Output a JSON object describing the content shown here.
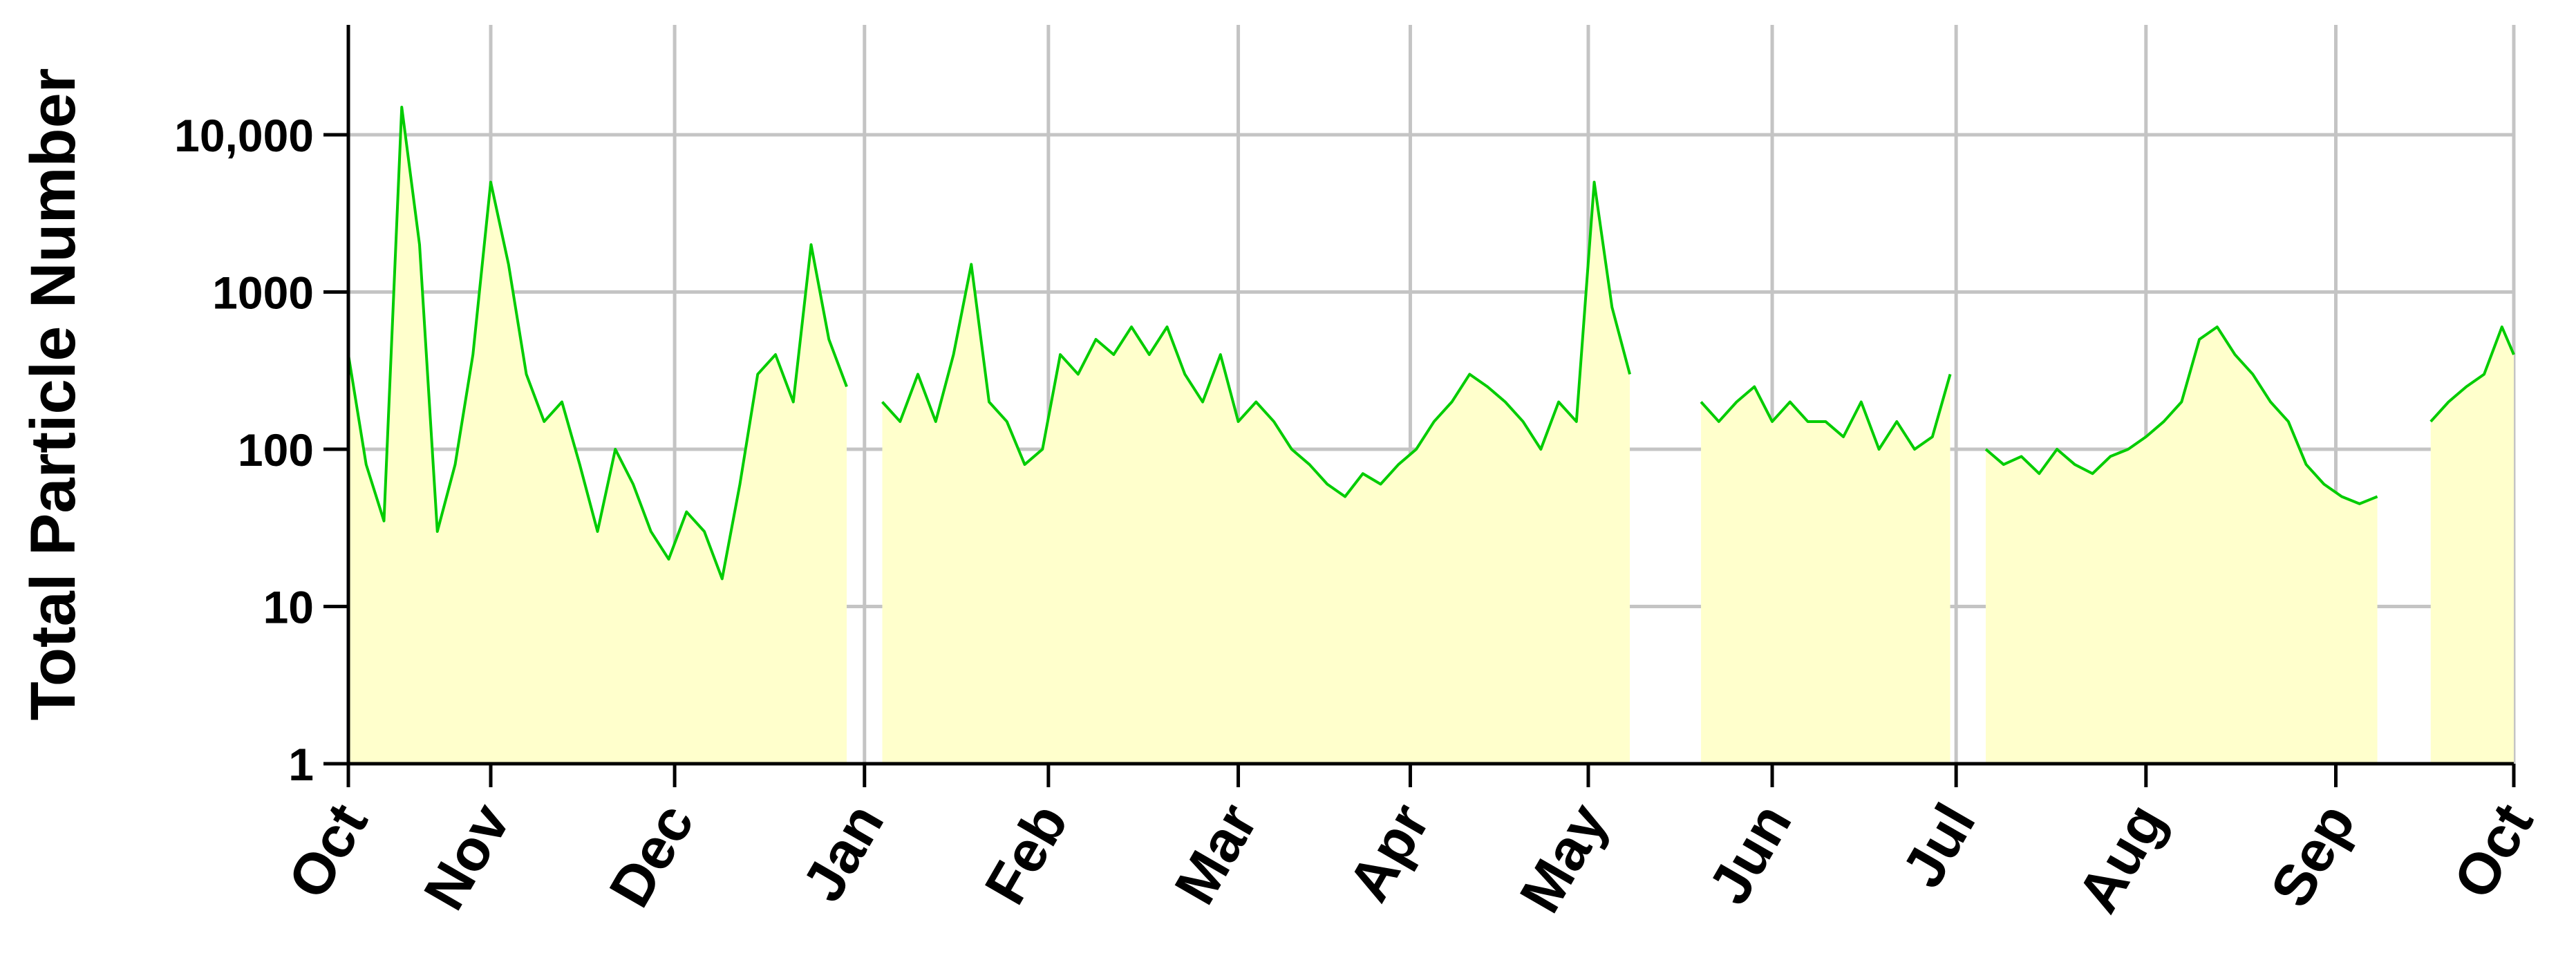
{
  "chart_data": {
    "type": "line",
    "y_label": "Total Particle Number",
    "log_y": true,
    "grid": true,
    "color": "#00cc00",
    "fill_color": "#ffffcc",
    "xlim": [
      0,
      365
    ],
    "ylim": [
      1,
      50000
    ],
    "xticks": [
      {
        "value": 0,
        "label": "Oct"
      },
      {
        "value": 24,
        "label": "Nov"
      },
      {
        "value": 55,
        "label": "Dec"
      },
      {
        "value": 87,
        "label": "Jan"
      },
      {
        "value": 118,
        "label": "Feb"
      },
      {
        "value": 150,
        "label": "Mar"
      },
      {
        "value": 179,
        "label": "Apr"
      },
      {
        "value": 209,
        "label": "May"
      },
      {
        "value": 240,
        "label": "Jun"
      },
      {
        "value": 271,
        "label": "Jul"
      },
      {
        "value": 303,
        "label": "Aug"
      },
      {
        "value": 335,
        "label": "Sep"
      },
      {
        "value": 365,
        "label": "Oct"
      }
    ],
    "yticks": [
      1,
      10,
      100,
      1000,
      {
        "value": 10000,
        "label": "10,000"
      }
    ],
    "x": [
      0,
      3,
      6,
      9,
      12,
      15,
      18,
      21,
      24,
      27,
      30,
      33,
      36,
      39,
      42,
      45,
      48,
      51,
      54,
      57,
      60,
      63,
      66,
      69,
      72,
      75,
      78,
      81,
      84,
      87,
      90,
      93,
      96,
      99,
      102,
      105,
      108,
      111,
      114,
      117,
      120,
      123,
      126,
      129,
      132,
      135,
      138,
      141,
      144,
      147,
      150,
      153,
      156,
      159,
      162,
      165,
      168,
      171,
      174,
      177,
      180,
      183,
      186,
      189,
      192,
      195,
      198,
      201,
      204,
      207,
      210,
      213,
      216,
      219,
      222,
      225,
      228,
      231,
      234,
      237,
      240,
      243,
      246,
      249,
      252,
      255,
      258,
      261,
      264,
      267,
      270,
      273,
      276,
      279,
      282,
      285,
      288,
      291,
      294,
      297,
      300,
      303,
      306,
      309,
      312,
      315,
      318,
      321,
      324,
      327,
      330,
      333,
      336,
      339,
      342,
      345,
      348,
      351,
      354,
      357,
      360,
      363,
      365
    ],
    "values": [
      400,
      80,
      35,
      15000,
      2000,
      30,
      80,
      400,
      5000,
      1500,
      300,
      150,
      200,
      80,
      30,
      100,
      60,
      30,
      20,
      40,
      30,
      15,
      60,
      300,
      400,
      200,
      2000,
      500,
      250,
      null,
      200,
      150,
      300,
      150,
      400,
      1500,
      200,
      150,
      80,
      100,
      400,
      300,
      500,
      400,
      600,
      400,
      600,
      300,
      200,
      400,
      150,
      200,
      150,
      100,
      80,
      60,
      50,
      70,
      60,
      80,
      100,
      150,
      200,
      300,
      250,
      200,
      150,
      100,
      200,
      150,
      5000,
      800,
      300,
      null,
      null,
      null,
      200,
      150,
      200,
      250,
      150,
      200,
      150,
      150,
      120,
      200,
      100,
      150,
      100,
      120,
      300,
      null,
      100,
      80,
      90,
      70,
      100,
      80,
      70,
      90,
      100,
      120,
      150,
      200,
      500,
      600,
      400,
      300,
      200,
      150,
      80,
      60,
      50,
      45,
      50,
      null,
      null,
      150,
      200,
      250,
      300,
      600,
      400
    ]
  }
}
